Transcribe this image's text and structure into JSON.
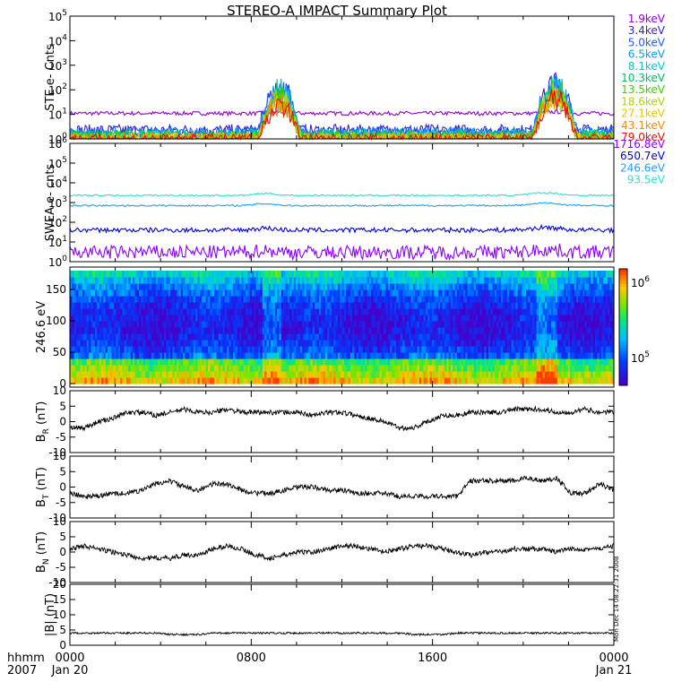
{
  "title": "STEREO-A IMPACT Summary Plot",
  "time_axis": {
    "corner_line1": "hhmm",
    "corner_line2": "2007",
    "ticks": [
      {
        "hhmm": "0000",
        "date": "Jan 20",
        "hours": 0
      },
      {
        "hhmm": "0800",
        "date": "",
        "hours": 8
      },
      {
        "hhmm": "1600",
        "date": "",
        "hours": 16
      },
      {
        "hhmm": "0000",
        "date": "Jan 21",
        "hours": 24
      }
    ],
    "range_hours": [
      0,
      24
    ]
  },
  "side_text": "Mon Dec 14 08:22:31 2008",
  "chart_data": [
    {
      "id": "ste",
      "type": "line",
      "ylabel": "STE e- Cnts",
      "yscale": "log",
      "ylim": [
        1,
        100000
      ],
      "yticks": [
        "10^0",
        "10^1",
        "10^2",
        "10^3",
        "10^4",
        "10^5"
      ],
      "legend_placement": "right",
      "series": [
        {
          "name": "1.9keV",
          "color": "#9400d3",
          "baseline": 11,
          "noise": 0.08
        },
        {
          "name": "3.4keV",
          "color": "#3a1ec8",
          "baseline": 2.2,
          "noise": 0.25
        },
        {
          "name": "5.0keV",
          "color": "#1f5cff",
          "baseline": 1.8,
          "noise": 0.25
        },
        {
          "name": "6.5keV",
          "color": "#00a0e6",
          "baseline": 1.6,
          "noise": 0.25
        },
        {
          "name": "8.1keV",
          "color": "#00c8c8",
          "baseline": 1.4,
          "noise": 0.25
        },
        {
          "name": "10.3keV",
          "color": "#00c060",
          "baseline": 1.3,
          "noise": 0.25
        },
        {
          "name": "13.5keV",
          "color": "#3cd200",
          "baseline": 1.2,
          "noise": 0.25
        },
        {
          "name": "18.6keV",
          "color": "#b4d200",
          "baseline": 1.15,
          "noise": 0.2
        },
        {
          "name": "27.1keV",
          "color": "#e6c800",
          "baseline": 1.1,
          "noise": 0.2
        },
        {
          "name": "43.1keV",
          "color": "#f08c00",
          "baseline": 1.05,
          "noise": 0.2
        },
        {
          "name": "79.0keV",
          "color": "#e01000",
          "baseline": 1.0,
          "noise": 0.2
        }
      ],
      "events": [
        {
          "start_h": 8.3,
          "end_h": 10.2,
          "peak": 250
        },
        {
          "start_h": 20.4,
          "end_h": 22.4,
          "peak": 400
        }
      ]
    },
    {
      "id": "swea",
      "type": "line",
      "ylabel": "SWEA e- cnts",
      "yscale": "log",
      "ylim": [
        1,
        1000000
      ],
      "yticks": [
        "10^0",
        "10^1",
        "10^2",
        "10^3",
        "10^4",
        "10^5",
        "10^6"
      ],
      "legend_placement": "right",
      "series": [
        {
          "name": "1716.8eV",
          "color": "#8c00ff",
          "baseline": 3,
          "noise": 0.35
        },
        {
          "name": "650.7eV",
          "color": "#0000d8",
          "baseline": 40,
          "noise": 0.12
        },
        {
          "name": "246.6eV",
          "color": "#1e9fff",
          "baseline": 700,
          "noise": 0.04
        },
        {
          "name": "93.5eV",
          "color": "#30e0c8",
          "baseline": 2300,
          "noise": 0.04
        }
      ]
    },
    {
      "id": "pad",
      "type": "heatmap",
      "ylabel": "246.6 eV",
      "ylim": [
        0,
        180
      ],
      "yticks": [
        "0",
        "50",
        "100",
        "150"
      ],
      "colorbar": {
        "scale": "log",
        "labels": [
          "10^5",
          "10^6"
        ]
      }
    },
    {
      "id": "br",
      "type": "line",
      "ylabel": "B_R (nT)",
      "ylim": [
        -10,
        10
      ],
      "yticks": [
        "-10",
        "-5",
        "0",
        "5",
        "10"
      ],
      "series": [
        {
          "color": "#000000",
          "values": [
            -2,
            -2,
            0,
            1,
            3,
            3,
            2,
            3,
            4,
            3,
            3,
            4,
            3,
            3,
            3,
            3,
            3,
            2,
            3,
            3,
            2,
            1,
            0,
            -2,
            -2,
            0,
            2,
            2,
            3,
            3,
            3,
            4,
            4,
            4,
            3,
            3,
            4,
            3,
            3
          ]
        }
      ]
    },
    {
      "id": "bt",
      "type": "line",
      "ylabel": "B_T (nT)",
      "ylim": [
        -10,
        10
      ],
      "yticks": [
        "-10",
        "-5",
        "0",
        "5",
        "10"
      ],
      "series": [
        {
          "color": "#000000",
          "values": [
            -2,
            -3,
            -3,
            -2,
            -2,
            -1,
            1,
            2,
            0,
            -1,
            1,
            1,
            -1,
            -2,
            -2,
            -1,
            0,
            0,
            -1,
            -1,
            -2,
            -2,
            -2,
            -3,
            -3,
            -3,
            -3,
            -3,
            2,
            2,
            2,
            2,
            3,
            2,
            3,
            -2,
            -2,
            1,
            -1
          ]
        }
      ]
    },
    {
      "id": "bn",
      "type": "line",
      "ylabel": "B_N (nT)",
      "ylim": [
        -10,
        10
      ],
      "yticks": [
        "-10",
        "-5",
        "0",
        "5",
        "10"
      ],
      "series": [
        {
          "color": "#000000",
          "values": [
            1,
            2,
            1,
            0,
            -1,
            -2,
            -2,
            -2,
            -1,
            -1,
            1,
            2,
            1,
            -1,
            -2,
            -1,
            0,
            0,
            1,
            2,
            2,
            1,
            0,
            1,
            2,
            2,
            1,
            0,
            -1,
            0,
            0,
            1,
            1,
            1,
            0,
            1,
            1,
            1,
            2
          ]
        }
      ]
    },
    {
      "id": "bmag",
      "type": "line",
      "ylabel": "|B| (nT)",
      "ylim": [
        0,
        20
      ],
      "yticks": [
        "0",
        "5",
        "10",
        "15",
        "20"
      ],
      "series": [
        {
          "color": "#000000",
          "values": [
            4,
            4,
            4,
            4,
            4,
            4,
            4,
            3.5,
            3.5,
            3.5,
            4,
            4,
            4,
            4,
            4,
            4,
            4,
            4,
            4,
            4,
            4,
            4,
            4,
            4,
            3.5,
            3.5,
            3.5,
            4,
            4,
            4,
            4,
            4,
            4,
            4,
            4,
            4,
            4,
            4,
            4
          ]
        }
      ]
    }
  ]
}
